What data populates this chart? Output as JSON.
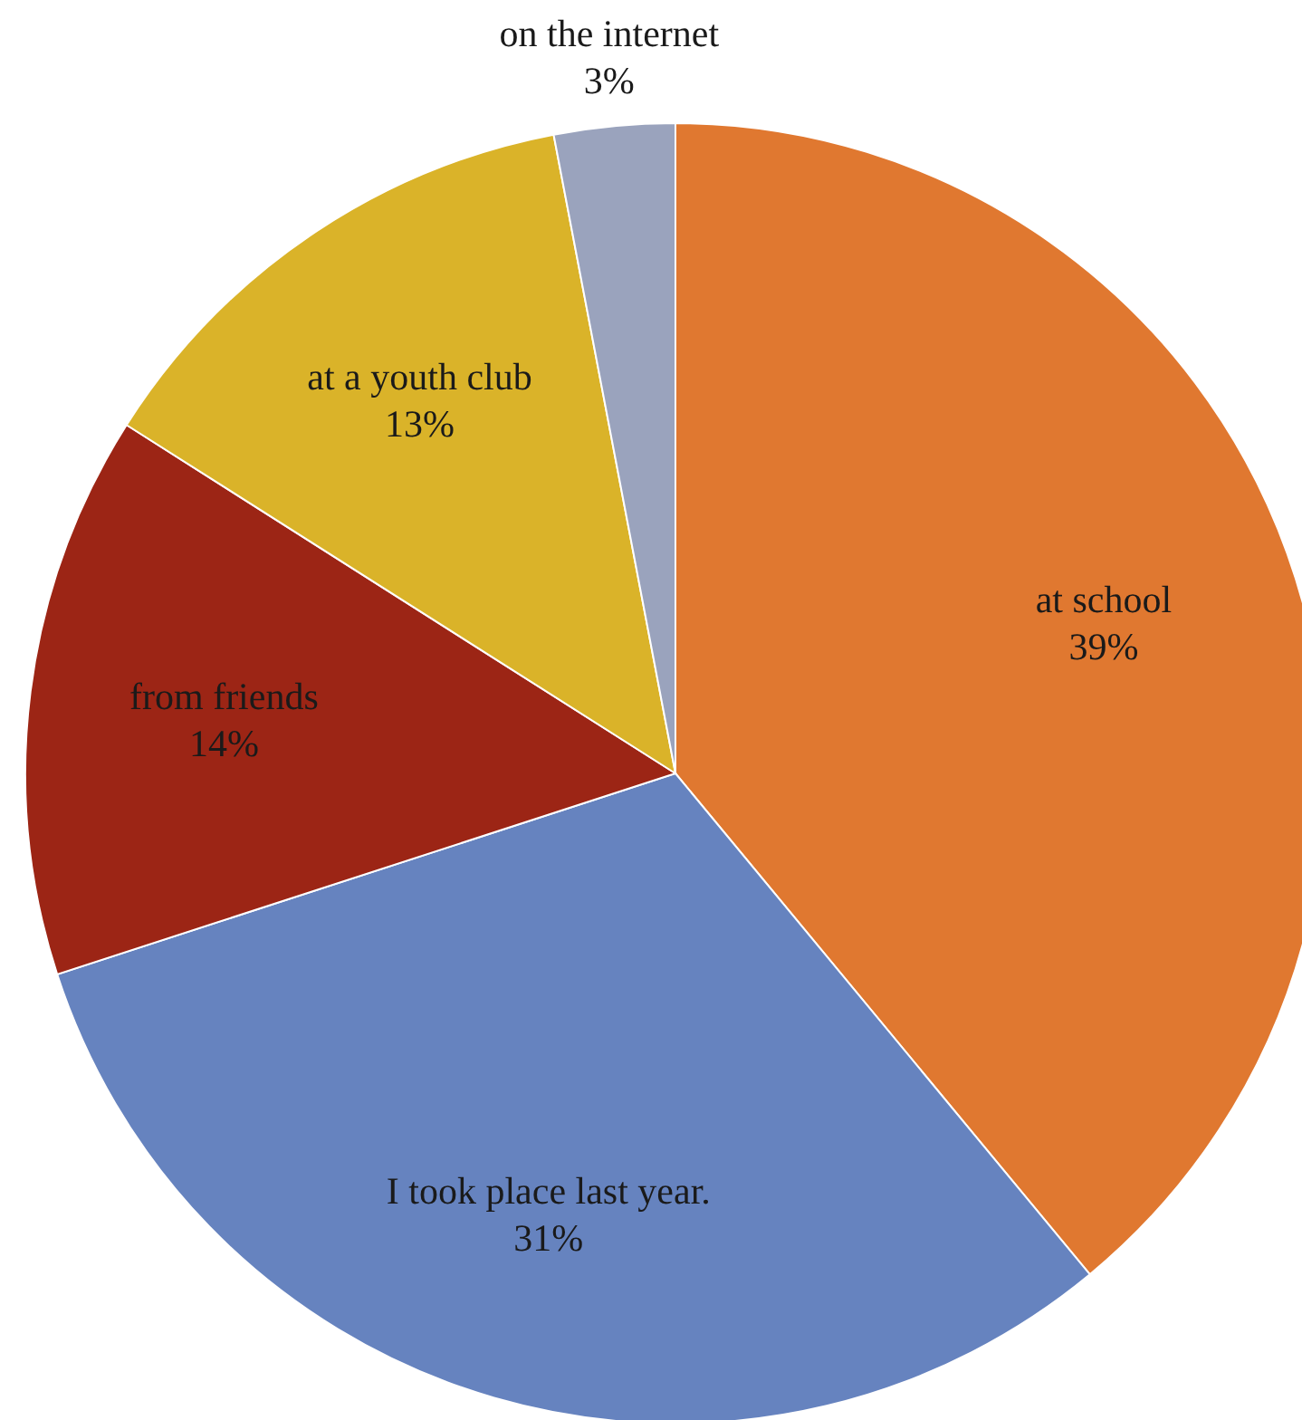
{
  "chart_data": {
    "type": "pie",
    "categories": [
      "at school",
      "I took place last year.",
      "from friends",
      "at a youth club",
      "on the internet"
    ],
    "values": [
      39,
      31,
      14,
      13,
      3
    ],
    "colors": [
      "#e07830",
      "#6683bf",
      "#9c2515",
      "#dab329",
      "#9aa3bd"
    ],
    "value_labels": [
      "39%",
      "31%",
      "14%",
      "13%",
      "3%"
    ]
  }
}
